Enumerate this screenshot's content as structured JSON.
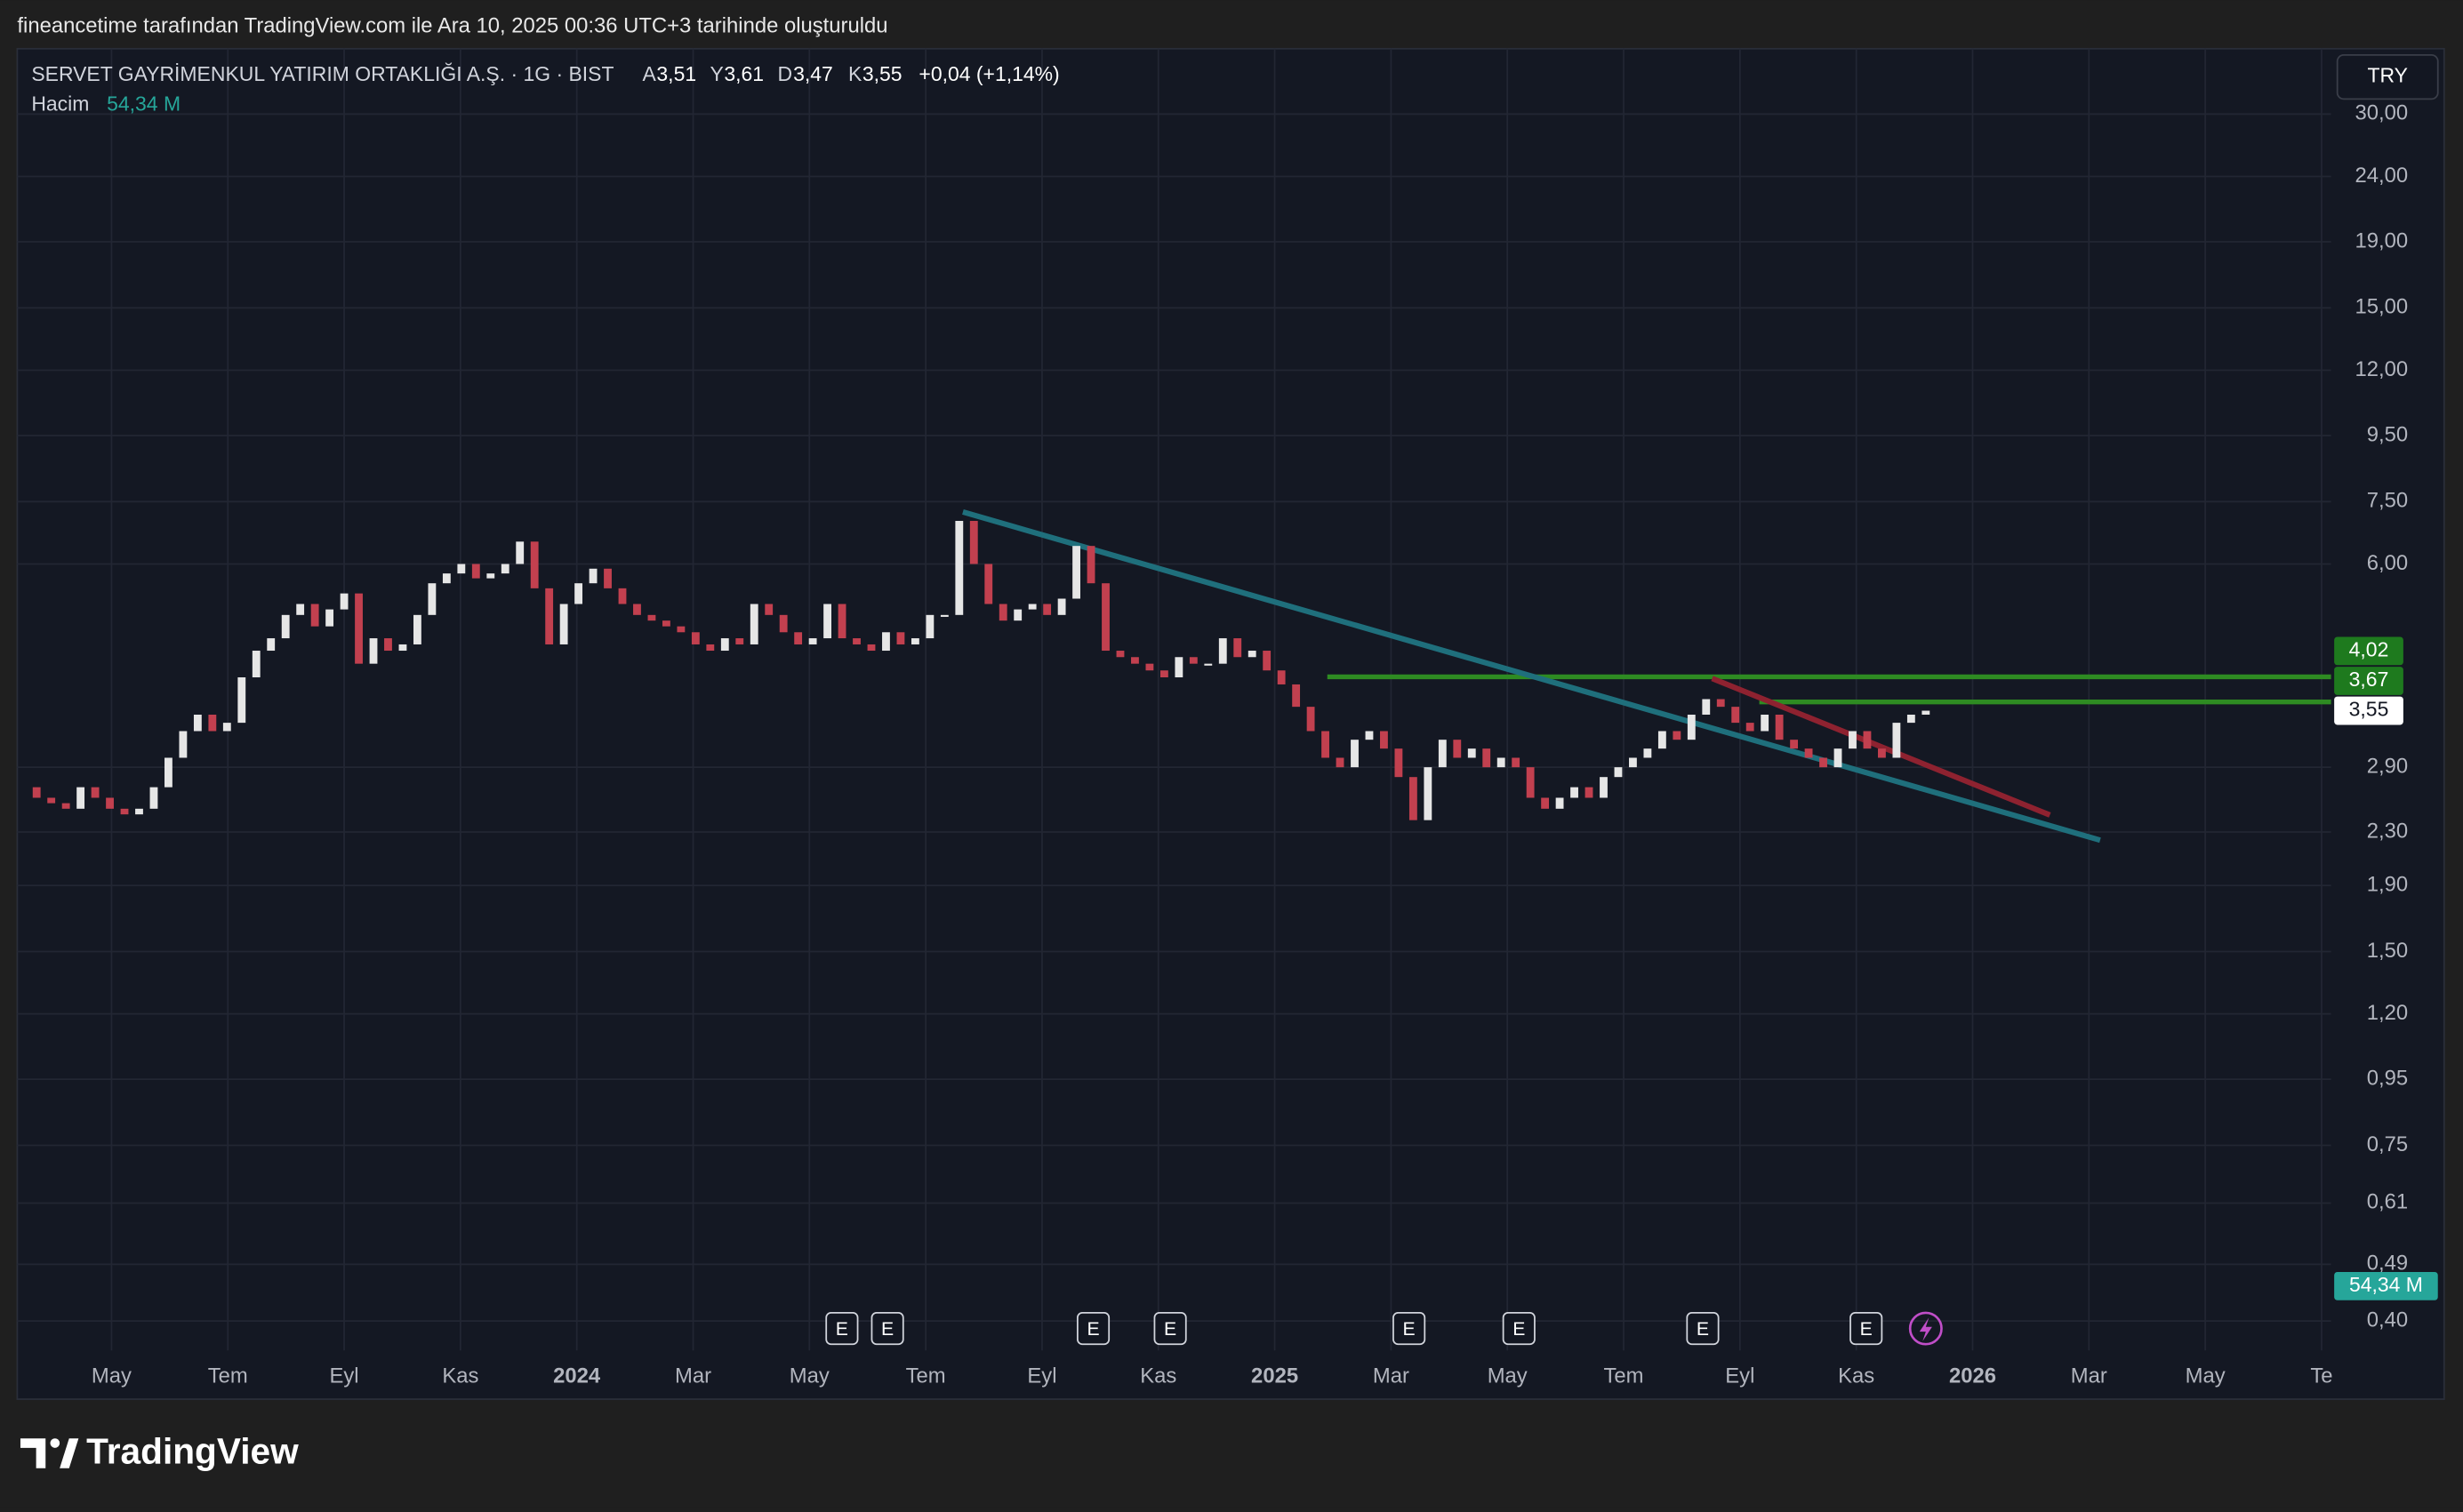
{
  "caption": "fineancetime tarafından TradingView.com ile Ara 10, 2025 00:36 UTC+3 tarihinde oluşturuldu",
  "logo": "TradingView",
  "currency": "TRY",
  "legend": {
    "symbol": "SERVET GAYRİMENKUL YATIRIM ORTAKLIĞI A.Ş. · 1G · BIST",
    "open_label": "A",
    "open": "3,51",
    "high_label": "Y",
    "high": "3,61",
    "low_label": "D",
    "low": "3,47",
    "close_label": "K",
    "close": "3,55",
    "change": "+0,04 (+1,14%)",
    "volume_label": "Hacim",
    "volume": "54,34 M"
  },
  "earnings_markers": [
    "E",
    "E",
    "E",
    "E",
    "E",
    "E",
    "E",
    "E"
  ],
  "chart_data": {
    "type": "candlestick",
    "log_scale": true,
    "grid": true,
    "up_color": "#e6e6e6",
    "down_color": "#c2404f",
    "ylim": [
      0.36,
      37.9
    ],
    "yticks": [
      {
        "value": 30,
        "label": "30,00"
      },
      {
        "value": 24,
        "label": "24,00"
      },
      {
        "value": 19,
        "label": "19,00"
      },
      {
        "value": 15,
        "label": "15,00"
      },
      {
        "value": 12,
        "label": "12,00"
      },
      {
        "value": 9.5,
        "label": "9,50"
      },
      {
        "value": 7.5,
        "label": "7,50"
      },
      {
        "value": 6,
        "label": "6,00"
      },
      {
        "value": 2.9,
        "label": "2,90"
      },
      {
        "value": 2.3,
        "label": "2,30"
      },
      {
        "value": 1.9,
        "label": "1,90"
      },
      {
        "value": 1.5,
        "label": "1,50"
      },
      {
        "value": 1.2,
        "label": "1,20"
      },
      {
        "value": 0.95,
        "label": "0,95"
      },
      {
        "value": 0.75,
        "label": "0,75"
      },
      {
        "value": 0.61,
        "label": "0,61"
      },
      {
        "value": 0.49,
        "label": "0,49"
      },
      {
        "value": 0.4,
        "label": "0,40"
      }
    ],
    "x_labels": [
      "May",
      "Tem",
      "Eyl",
      "Kas",
      "2024",
      "Mar",
      "May",
      "Tem",
      "Eyl",
      "Kas",
      "2025",
      "Mar",
      "May",
      "Tem",
      "Eyl",
      "Kas",
      "2026",
      "Mar",
      "May",
      "Te"
    ],
    "close": [
      2.7,
      2.6,
      2.55,
      2.5,
      2.7,
      2.6,
      2.5,
      2.45,
      2.5,
      2.7,
      3.0,
      3.3,
      3.5,
      3.3,
      3.4,
      4.0,
      4.4,
      4.6,
      5.0,
      5.2,
      4.8,
      5.1,
      5.4,
      4.2,
      4.6,
      4.4,
      4.5,
      5.0,
      5.6,
      5.8,
      6.0,
      5.7,
      5.8,
      6.0,
      6.5,
      5.5,
      4.5,
      5.2,
      5.6,
      5.9,
      5.5,
      5.2,
      5.0,
      4.9,
      4.8,
      4.7,
      4.5,
      4.4,
      4.6,
      4.5,
      5.2,
      5.0,
      4.7,
      4.5,
      4.6,
      5.2,
      4.6,
      4.5,
      4.4,
      4.7,
      4.5,
      4.6,
      5.0,
      5.0,
      7.0,
      6.0,
      5.2,
      4.9,
      5.1,
      5.2,
      5.0,
      5.3,
      6.4,
      5.6,
      4.4,
      4.3,
      4.2,
      4.1,
      4.0,
      4.3,
      4.2,
      4.2,
      4.6,
      4.3,
      4.4,
      4.1,
      3.9,
      3.6,
      3.3,
      3.0,
      2.9,
      3.2,
      3.3,
      3.1,
      2.8,
      2.4,
      2.9,
      3.2,
      3.0,
      3.1,
      2.9,
      3.0,
      2.9,
      2.6,
      2.5,
      2.6,
      2.7,
      2.6,
      2.8,
      2.9,
      3.0,
      3.1,
      3.3,
      3.2,
      3.5,
      3.7,
      3.6,
      3.4,
      3.3,
      3.5,
      3.2,
      3.1,
      3.0,
      2.9,
      3.1,
      3.3,
      3.1,
      3.0,
      3.4,
      3.5,
      3.55
    ],
    "price_tags": [
      {
        "value": 4.02,
        "label": "4,02",
        "color": "#1e7a1e"
      },
      {
        "value": 3.67,
        "label": "3,67",
        "color": "#1e7a1e"
      },
      {
        "value": 3.55,
        "label": "3,55",
        "color": "#ffffff"
      }
    ],
    "volume_tag": "54,34 M"
  }
}
